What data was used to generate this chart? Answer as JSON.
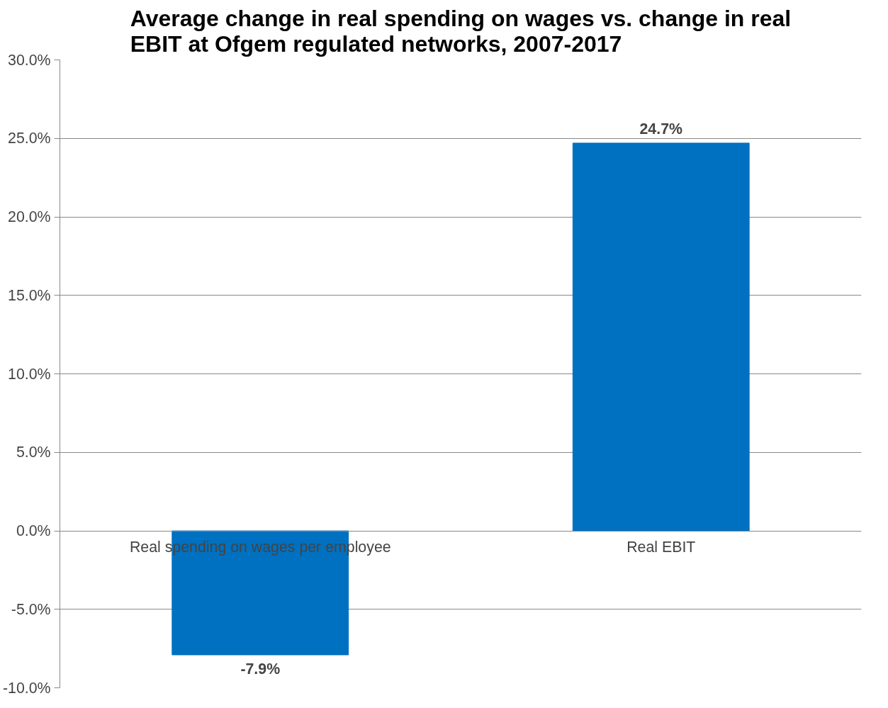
{
  "chart_data": {
    "type": "bar",
    "title": "Average change in real spending on wages vs. change in real\nEBIT at Ofgem regulated networks, 2007-2017",
    "categories": [
      "Real spending on wages per employee",
      "Real EBIT"
    ],
    "values": [
      -7.9,
      24.7
    ],
    "value_labels": [
      "-7.9%",
      "24.7%"
    ],
    "color": "#0070c0",
    "ylim": [
      -10,
      30
    ],
    "yticks": [
      {
        "value": -10,
        "label": "-10.0%"
      },
      {
        "value": -5,
        "label": "-5.0%"
      },
      {
        "value": 0,
        "label": "0.0%"
      },
      {
        "value": 5,
        "label": "5.0%"
      },
      {
        "value": 10,
        "label": "10.0%"
      },
      {
        "value": 15,
        "label": "15.0%"
      },
      {
        "value": 20,
        "label": "20.0%"
      },
      {
        "value": 25,
        "label": "25.0%"
      },
      {
        "value": 30,
        "label": "30.0%"
      }
    ],
    "grid": "y"
  }
}
